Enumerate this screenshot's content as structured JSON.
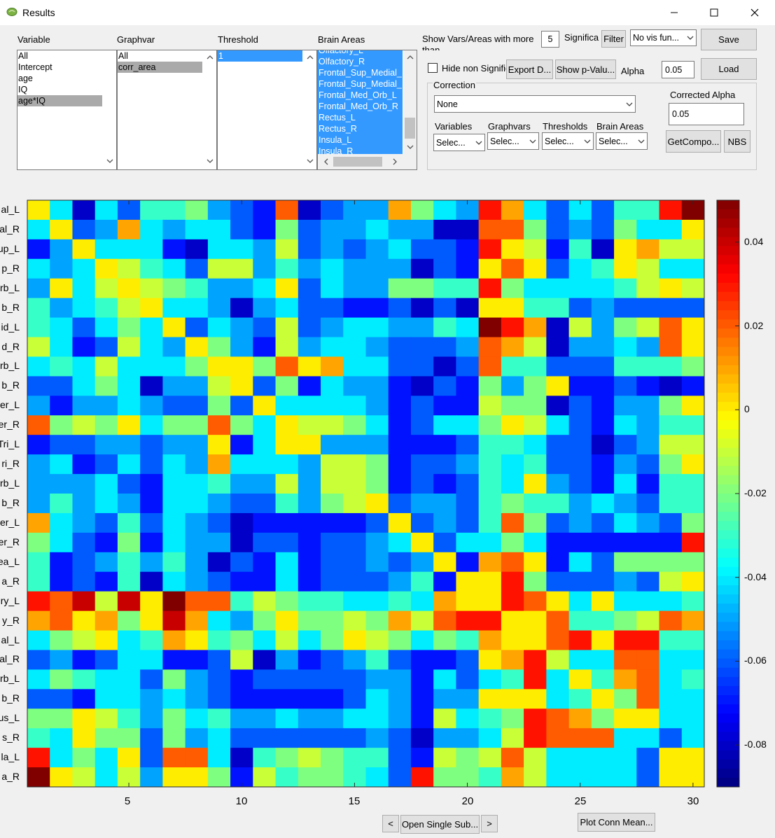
{
  "window": {
    "title": "Results",
    "controls": [
      "minimize-icon",
      "maximize-icon",
      "close-icon"
    ]
  },
  "panels": {
    "variable": {
      "label": "Variable",
      "items": [
        "All",
        "Intercept",
        "age",
        "IQ",
        "age*IQ"
      ],
      "selected_index": 4
    },
    "graphvar": {
      "label": "Graphvar",
      "items": [
        "All",
        "corr_area"
      ],
      "selected_index": 1
    },
    "threshold": {
      "label": "Threshold",
      "items": [
        "1"
      ],
      "selected_index": 0
    },
    "brain_areas": {
      "label": "Brain Areas",
      "items": [
        "Olfactory_L",
        "Olfactory_R",
        "Frontal_Sup_Medial_",
        "Frontal_Sup_Medial_",
        "Frontal_Med_Orb_L",
        "Frontal_Med_Orb_R",
        "Rectus_L",
        "Rectus_R",
        "Insula_L",
        "Insula_R"
      ]
    }
  },
  "controls": {
    "show_more_label": "Show Vars/Areas with more than",
    "show_more_value": "5",
    "significant_label": "Significant",
    "filter_label": "Filter",
    "vis_function": "No vis fun...",
    "save_label": "Save",
    "load_label": "Load",
    "hide_non_sig_label": "Hide non Significant",
    "hide_non_sig_checked": false,
    "export_label": "Export D...",
    "show_pvalues_label": "Show p-Valu...",
    "alpha_label": "Alpha",
    "alpha_value": "0.05"
  },
  "correction": {
    "title": "Correction",
    "method": "None",
    "corrected_alpha_label": "Corrected Alpha",
    "corrected_alpha_value": "0.05",
    "filters": [
      {
        "label": "Variables",
        "value": "Selec..."
      },
      {
        "label": "Graphvars",
        "value": "Selec..."
      },
      {
        "label": "Thresholds",
        "value": "Selec..."
      },
      {
        "label": "Brain Areas",
        "value": "Selec..."
      }
    ],
    "getcomponents_label": "GetCompo...",
    "nbs_label": "NBS"
  },
  "plot": {
    "x_ticks": [
      "5",
      "10",
      "15",
      "20",
      "25",
      "30"
    ],
    "y_labels": [
      "al_L",
      "al_R",
      "up_L",
      "p_R",
      "rb_L",
      "b_R",
      "id_L",
      "d_R",
      "rb_L",
      "b_R",
      "er_L",
      "er_R",
      "Tri_L",
      "ri_R",
      "rb_L",
      "b_R",
      "er_L",
      "er_R",
      "ea_L",
      "a_R",
      "ry_L",
      "y_R",
      "al_L",
      "al_R",
      "rb_L",
      "b_R",
      "us_L",
      "s_R",
      "la_L",
      "a_R"
    ],
    "colorbar_ticks": [
      "0.04",
      "0.02",
      "0",
      "-0.02",
      "-0.04",
      "-0.06",
      "-0.08"
    ]
  },
  "bottom": {
    "prev_label": "<",
    "open_single_label": "Open Single Sub...",
    "next_label": ">",
    "plot_conn_label": "Plot Conn Mean..."
  },
  "chart_data": {
    "type": "heatmap",
    "x": [
      1,
      2,
      3,
      4,
      5,
      6,
      7,
      8,
      9,
      10,
      11,
      12,
      13,
      14,
      15,
      16,
      17,
      18,
      19,
      20,
      21,
      22,
      23,
      24,
      25,
      26,
      27,
      28,
      29,
      30
    ],
    "x_ticks": [
      5,
      10,
      15,
      20,
      25,
      30
    ],
    "y_labels": [
      "al_L",
      "al_R",
      "up_L",
      "p_R",
      "rb_L",
      "b_R",
      "id_L",
      "d_R",
      "rb_L",
      "b_R",
      "er_L",
      "er_R",
      "Tri_L",
      "ri_R",
      "rb_L",
      "b_R",
      "er_L",
      "er_R",
      "ea_L",
      "a_R",
      "ry_L",
      "y_R",
      "al_L",
      "al_R",
      "rb_L",
      "b_R",
      "us_L",
      "s_R",
      "la_L",
      "a_R"
    ],
    "colorbar": {
      "min": -0.09,
      "max": 0.05,
      "ticks": [
        0.04,
        0.02,
        0,
        -0.02,
        -0.04,
        -0.06,
        -0.08
      ],
      "colormap": "jet"
    },
    "values": [
      [
        0.0,
        -0.04,
        -0.08,
        -0.04,
        -0.06,
        -0.03,
        -0.03,
        -0.02,
        -0.05,
        -0.06,
        -0.07,
        0.02,
        -0.08,
        -0.06,
        -0.05,
        -0.05,
        0.01,
        -0.02,
        -0.04,
        -0.05,
        0.03,
        0.01,
        -0.04,
        -0.06,
        -0.04,
        -0.06,
        -0.03,
        -0.03,
        0.03,
        0.05
      ],
      [
        -0.04,
        0.0,
        -0.06,
        -0.05,
        0.01,
        -0.04,
        -0.05,
        -0.04,
        -0.04,
        -0.06,
        -0.07,
        -0.02,
        -0.06,
        -0.05,
        -0.05,
        -0.04,
        -0.05,
        -0.05,
        -0.08,
        -0.08,
        0.02,
        0.02,
        -0.02,
        -0.06,
        -0.05,
        -0.06,
        -0.02,
        -0.04,
        -0.04,
        0.0
      ],
      [
        -0.07,
        -0.05,
        0.0,
        -0.04,
        -0.04,
        -0.04,
        -0.07,
        -0.08,
        -0.04,
        -0.04,
        -0.05,
        -0.01,
        -0.06,
        -0.05,
        -0.06,
        -0.05,
        -0.04,
        -0.06,
        -0.06,
        -0.07,
        0.03,
        0.0,
        -0.01,
        -0.07,
        -0.03,
        -0.08,
        0.0,
        0.01,
        -0.01,
        -0.01
      ],
      [
        -0.04,
        -0.05,
        -0.04,
        0.0,
        -0.01,
        -0.03,
        -0.04,
        -0.06,
        -0.01,
        -0.01,
        -0.05,
        -0.03,
        -0.05,
        -0.04,
        -0.05,
        -0.05,
        -0.05,
        -0.08,
        -0.06,
        -0.07,
        0.0,
        0.02,
        0.0,
        -0.06,
        -0.04,
        -0.03,
        0.0,
        -0.01,
        -0.04,
        -0.04
      ],
      [
        -0.05,
        0.0,
        -0.04,
        -0.01,
        0.0,
        -0.01,
        -0.02,
        -0.03,
        -0.05,
        -0.05,
        -0.04,
        0.0,
        -0.06,
        -0.04,
        -0.05,
        -0.05,
        -0.02,
        -0.02,
        -0.03,
        -0.03,
        0.03,
        -0.02,
        -0.04,
        -0.04,
        -0.04,
        -0.04,
        -0.03,
        -0.01,
        0.0,
        -0.01
      ],
      [
        -0.03,
        -0.05,
        -0.04,
        -0.03,
        -0.01,
        0.0,
        -0.04,
        -0.04,
        -0.05,
        -0.08,
        -0.05,
        -0.04,
        -0.06,
        -0.06,
        -0.07,
        -0.07,
        -0.06,
        -0.08,
        -0.06,
        -0.08,
        0.0,
        0.0,
        -0.03,
        -0.03,
        -0.06,
        -0.05,
        -0.06,
        -0.06,
        -0.06,
        -0.06
      ],
      [
        -0.03,
        -0.04,
        -0.06,
        -0.04,
        -0.02,
        -0.04,
        0.0,
        -0.06,
        -0.04,
        -0.05,
        -0.06,
        -0.01,
        -0.06,
        -0.05,
        -0.04,
        -0.04,
        -0.05,
        -0.05,
        -0.03,
        -0.04,
        0.05,
        0.03,
        0.01,
        -0.08,
        -0.01,
        -0.05,
        -0.02,
        -0.01,
        0.02,
        0.0
      ],
      [
        -0.01,
        -0.04,
        -0.07,
        -0.06,
        -0.01,
        -0.04,
        -0.05,
        0.0,
        -0.02,
        -0.05,
        -0.07,
        -0.01,
        -0.05,
        -0.04,
        -0.04,
        -0.05,
        -0.06,
        -0.06,
        -0.06,
        -0.05,
        0.02,
        0.01,
        -0.01,
        -0.08,
        -0.05,
        -0.05,
        -0.04,
        -0.05,
        0.02,
        0.0
      ],
      [
        -0.04,
        -0.03,
        -0.04,
        -0.01,
        -0.04,
        -0.04,
        -0.04,
        -0.02,
        0.0,
        0.0,
        -0.02,
        0.02,
        0.0,
        0.01,
        -0.04,
        -0.04,
        -0.06,
        -0.06,
        -0.08,
        -0.06,
        0.02,
        -0.03,
        -0.03,
        -0.06,
        -0.06,
        -0.06,
        -0.03,
        -0.03,
        -0.03,
        -0.02
      ],
      [
        -0.06,
        -0.06,
        -0.04,
        -0.02,
        -0.04,
        -0.08,
        -0.05,
        -0.05,
        -0.01,
        0.0,
        -0.06,
        -0.02,
        -0.07,
        -0.04,
        -0.05,
        -0.05,
        -0.07,
        -0.08,
        -0.06,
        -0.07,
        -0.02,
        -0.05,
        -0.02,
        0.0,
        -0.07,
        -0.07,
        -0.06,
        -0.07,
        -0.08,
        -0.07
      ],
      [
        -0.05,
        -0.07,
        -0.05,
        -0.05,
        -0.04,
        -0.05,
        -0.06,
        -0.06,
        -0.02,
        -0.06,
        0.0,
        -0.04,
        -0.04,
        -0.04,
        -0.04,
        -0.05,
        -0.07,
        -0.06,
        -0.07,
        -0.07,
        -0.01,
        -0.02,
        -0.02,
        -0.08,
        -0.06,
        -0.07,
        -0.05,
        -0.05,
        -0.02,
        0.0
      ],
      [
        0.02,
        -0.02,
        -0.01,
        -0.02,
        0.0,
        -0.04,
        -0.02,
        -0.02,
        0.02,
        -0.02,
        -0.04,
        0.0,
        -0.01,
        -0.01,
        -0.02,
        -0.04,
        -0.07,
        -0.06,
        -0.04,
        -0.04,
        -0.02,
        0.0,
        -0.01,
        -0.04,
        -0.06,
        -0.07,
        -0.04,
        -0.05,
        -0.03,
        -0.03
      ],
      [
        -0.07,
        -0.06,
        -0.06,
        -0.05,
        -0.05,
        -0.06,
        -0.05,
        -0.05,
        0.0,
        -0.07,
        -0.04,
        0.0,
        0.0,
        -0.05,
        -0.05,
        -0.05,
        -0.07,
        -0.07,
        -0.07,
        -0.06,
        -0.03,
        -0.03,
        -0.04,
        -0.06,
        -0.06,
        -0.08,
        -0.06,
        -0.05,
        -0.01,
        -0.01
      ],
      [
        -0.05,
        -0.04,
        -0.07,
        -0.06,
        -0.04,
        -0.06,
        -0.04,
        -0.05,
        0.01,
        -0.04,
        -0.04,
        -0.04,
        -0.05,
        -0.01,
        -0.01,
        -0.02,
        -0.07,
        -0.06,
        -0.06,
        -0.05,
        -0.03,
        -0.04,
        -0.03,
        -0.06,
        -0.06,
        -0.07,
        -0.05,
        -0.06,
        -0.02,
        0.0
      ],
      [
        -0.05,
        -0.05,
        -0.05,
        -0.04,
        -0.06,
        -0.07,
        -0.04,
        -0.04,
        -0.03,
        -0.05,
        -0.05,
        -0.01,
        -0.05,
        -0.01,
        -0.01,
        -0.02,
        -0.07,
        -0.06,
        -0.07,
        -0.06,
        -0.03,
        -0.04,
        0.0,
        -0.05,
        -0.06,
        -0.07,
        -0.04,
        -0.07,
        -0.03,
        -0.03
      ],
      [
        -0.05,
        -0.03,
        -0.05,
        -0.04,
        -0.05,
        -0.07,
        -0.04,
        -0.04,
        -0.05,
        -0.06,
        -0.06,
        -0.03,
        -0.05,
        -0.02,
        -0.01,
        0.0,
        -0.06,
        -0.05,
        -0.05,
        -0.06,
        -0.03,
        -0.02,
        -0.03,
        -0.03,
        -0.05,
        -0.04,
        -0.05,
        -0.06,
        -0.03,
        -0.03
      ],
      [
        0.01,
        -0.04,
        -0.05,
        -0.06,
        -0.03,
        -0.06,
        -0.04,
        -0.05,
        -0.06,
        -0.08,
        -0.07,
        -0.07,
        -0.07,
        -0.07,
        -0.07,
        -0.06,
        0.0,
        -0.06,
        -0.05,
        -0.06,
        -0.03,
        0.02,
        -0.02,
        -0.06,
        -0.05,
        -0.06,
        -0.04,
        -0.05,
        -0.06,
        -0.02
      ],
      [
        -0.02,
        -0.04,
        -0.06,
        -0.07,
        -0.02,
        -0.07,
        -0.04,
        -0.05,
        -0.05,
        -0.08,
        -0.06,
        -0.06,
        -0.07,
        -0.06,
        -0.06,
        -0.05,
        -0.04,
        0.0,
        -0.06,
        -0.04,
        -0.04,
        -0.02,
        -0.04,
        -0.07,
        -0.07,
        -0.07,
        -0.07,
        -0.07,
        -0.07,
        0.03
      ],
      [
        -0.03,
        -0.07,
        -0.06,
        -0.05,
        -0.03,
        -0.05,
        -0.03,
        -0.05,
        -0.08,
        -0.06,
        -0.07,
        -0.04,
        -0.07,
        -0.06,
        -0.06,
        -0.05,
        -0.06,
        -0.05,
        0.0,
        -0.07,
        0.01,
        0.02,
        0.0,
        -0.07,
        -0.04,
        -0.06,
        -0.02,
        -0.02,
        -0.02,
        -0.02
      ],
      [
        -0.03,
        -0.07,
        -0.06,
        -0.07,
        -0.03,
        -0.08,
        -0.04,
        -0.05,
        -0.06,
        -0.07,
        -0.07,
        -0.04,
        -0.07,
        -0.06,
        -0.06,
        -0.06,
        -0.05,
        -0.03,
        -0.07,
        0.0,
        0.0,
        0.03,
        -0.02,
        -0.06,
        -0.06,
        -0.06,
        -0.05,
        -0.06,
        -0.01,
        0.0
      ],
      [
        0.03,
        0.02,
        0.04,
        -0.01,
        0.04,
        0.0,
        0.05,
        0.02,
        0.02,
        -0.03,
        -0.01,
        -0.02,
        -0.03,
        -0.03,
        -0.04,
        -0.04,
        -0.03,
        -0.04,
        0.01,
        0.0,
        0.0,
        0.03,
        0.02,
        0.0,
        -0.04,
        0.0,
        -0.04,
        -0.04,
        -0.04,
        -0.03
      ],
      [
        0.01,
        0.02,
        0.0,
        0.01,
        -0.02,
        0.0,
        0.04,
        0.01,
        -0.04,
        -0.05,
        -0.02,
        0.0,
        -0.02,
        -0.02,
        -0.01,
        -0.02,
        0.01,
        -0.01,
        0.02,
        0.03,
        0.03,
        0.0,
        0.0,
        0.02,
        -0.03,
        -0.03,
        -0.02,
        -0.01,
        0.02,
        0.01
      ],
      [
        -0.04,
        -0.02,
        -0.01,
        0.0,
        -0.04,
        -0.03,
        0.01,
        0.0,
        -0.03,
        -0.02,
        -0.04,
        -0.01,
        -0.04,
        -0.02,
        0.0,
        -0.01,
        -0.02,
        -0.04,
        -0.02,
        -0.03,
        0.01,
        0.0,
        0.0,
        0.02,
        0.03,
        0.0,
        0.03,
        0.03,
        -0.03,
        -0.03
      ],
      [
        -0.06,
        -0.05,
        -0.07,
        -0.06,
        -0.04,
        -0.04,
        -0.07,
        -0.07,
        -0.06,
        -0.01,
        -0.08,
        -0.05,
        -0.07,
        -0.06,
        -0.05,
        -0.03,
        -0.06,
        -0.07,
        -0.07,
        -0.06,
        0.0,
        0.01,
        0.03,
        -0.01,
        -0.04,
        -0.04,
        0.02,
        0.02,
        -0.04,
        -0.04
      ],
      [
        -0.04,
        -0.02,
        -0.03,
        -0.04,
        -0.04,
        -0.06,
        -0.02,
        -0.05,
        -0.06,
        -0.07,
        -0.06,
        -0.06,
        -0.06,
        -0.06,
        -0.06,
        -0.05,
        -0.05,
        -0.07,
        -0.04,
        -0.06,
        -0.04,
        -0.03,
        0.03,
        -0.04,
        0.0,
        -0.03,
        0.01,
        0.02,
        -0.04,
        -0.03
      ],
      [
        -0.06,
        -0.06,
        -0.07,
        -0.04,
        -0.04,
        -0.05,
        -0.04,
        -0.05,
        -0.06,
        -0.07,
        -0.07,
        -0.07,
        -0.07,
        -0.07,
        -0.06,
        -0.04,
        -0.05,
        -0.07,
        -0.05,
        -0.05,
        0.0,
        0.0,
        0.0,
        -0.04,
        -0.03,
        0.0,
        -0.02,
        0.02,
        -0.04,
        -0.04
      ],
      [
        -0.02,
        -0.02,
        0.0,
        -0.01,
        -0.03,
        -0.05,
        -0.02,
        -0.04,
        -0.03,
        -0.05,
        -0.05,
        -0.04,
        -0.05,
        -0.05,
        -0.04,
        -0.04,
        -0.05,
        -0.07,
        -0.01,
        -0.04,
        -0.03,
        -0.02,
        0.03,
        0.02,
        0.01,
        -0.02,
        0.0,
        0.0,
        -0.04,
        -0.04
      ],
      [
        -0.03,
        -0.04,
        0.0,
        -0.02,
        -0.02,
        -0.06,
        -0.02,
        -0.05,
        -0.04,
        -0.06,
        -0.06,
        -0.06,
        -0.06,
        -0.06,
        -0.06,
        -0.05,
        -0.06,
        -0.08,
        -0.05,
        -0.05,
        -0.04,
        -0.01,
        0.03,
        0.02,
        0.02,
        0.02,
        -0.04,
        -0.04,
        -0.06,
        -0.04
      ],
      [
        0.03,
        -0.04,
        -0.02,
        -0.04,
        0.0,
        -0.06,
        0.02,
        0.02,
        -0.04,
        -0.08,
        -0.03,
        -0.02,
        -0.01,
        -0.02,
        -0.03,
        -0.03,
        -0.06,
        -0.07,
        -0.01,
        -0.02,
        -0.01,
        0.02,
        -0.01,
        -0.04,
        -0.04,
        -0.04,
        -0.04,
        -0.06,
        0.0,
        0.0
      ],
      [
        0.05,
        0.0,
        -0.01,
        -0.04,
        -0.01,
        -0.05,
        0.0,
        0.0,
        -0.02,
        -0.07,
        -0.01,
        -0.03,
        -0.02,
        -0.02,
        -0.03,
        -0.04,
        -0.06,
        0.03,
        -0.02,
        -0.02,
        -0.03,
        0.01,
        -0.01,
        -0.04,
        -0.04,
        -0.04,
        -0.04,
        -0.06,
        0.0,
        0.0
      ]
    ]
  }
}
